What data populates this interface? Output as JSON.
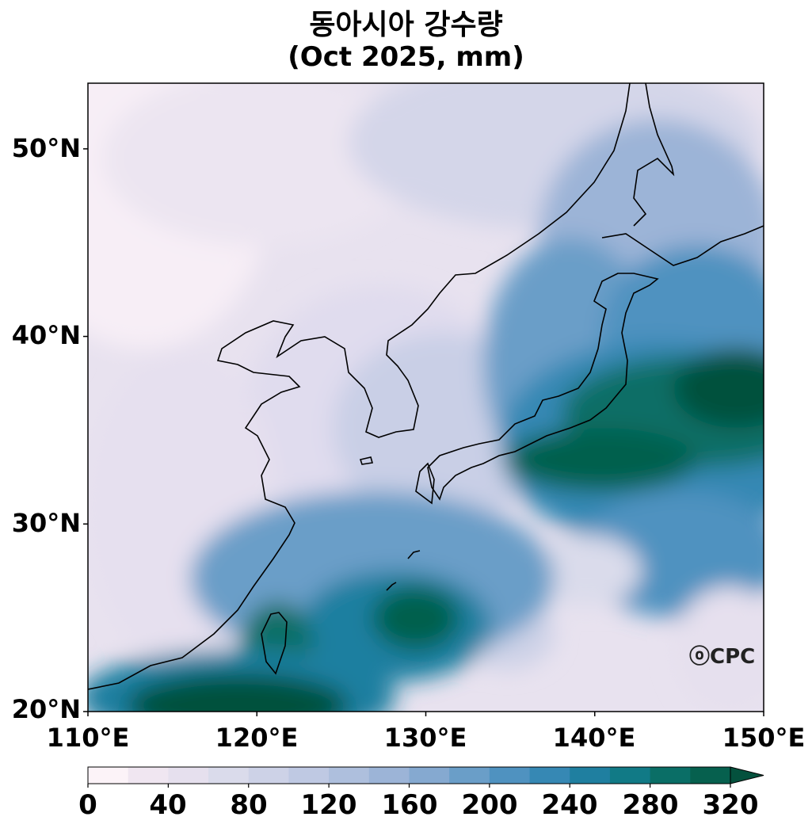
{
  "title": {
    "line1": "동아시아 강수량",
    "line2": "(Oct 2025, mm)"
  },
  "map": {
    "region": "East Asia",
    "lon_range": [
      110,
      150
    ],
    "lat_range": [
      20,
      53.5
    ],
    "projection": "PlateCarree",
    "x_ticks": [
      "110°E",
      "120°E",
      "130°E",
      "140°E",
      "150°E"
    ],
    "y_ticks": [
      "20°N",
      "30°N",
      "40°N",
      "50°N"
    ],
    "coastline_color": "#000000"
  },
  "colorbar": {
    "ticks": [
      "0",
      "40",
      "80",
      "120",
      "160",
      "200",
      "240",
      "280",
      "320"
    ],
    "levels": [
      0,
      20,
      40,
      60,
      80,
      100,
      120,
      140,
      160,
      180,
      200,
      220,
      240,
      260,
      280,
      300,
      320
    ],
    "extend": "max",
    "colormap": "PuBuGn",
    "colors": [
      "#fcf3f8",
      "#f0e6f1",
      "#e6e0ee",
      "#dadbeb",
      "#cdd2e7",
      "#bfc9e3",
      "#aebfdd",
      "#9cb4d7",
      "#85a9d0",
      "#6a9ec8",
      "#4f92c0",
      "#3688b4",
      "#1f7fa0",
      "#117a86",
      "#0a6e66",
      "#06604e",
      "#04513d"
    ]
  },
  "credit": "ⓞCPC"
}
